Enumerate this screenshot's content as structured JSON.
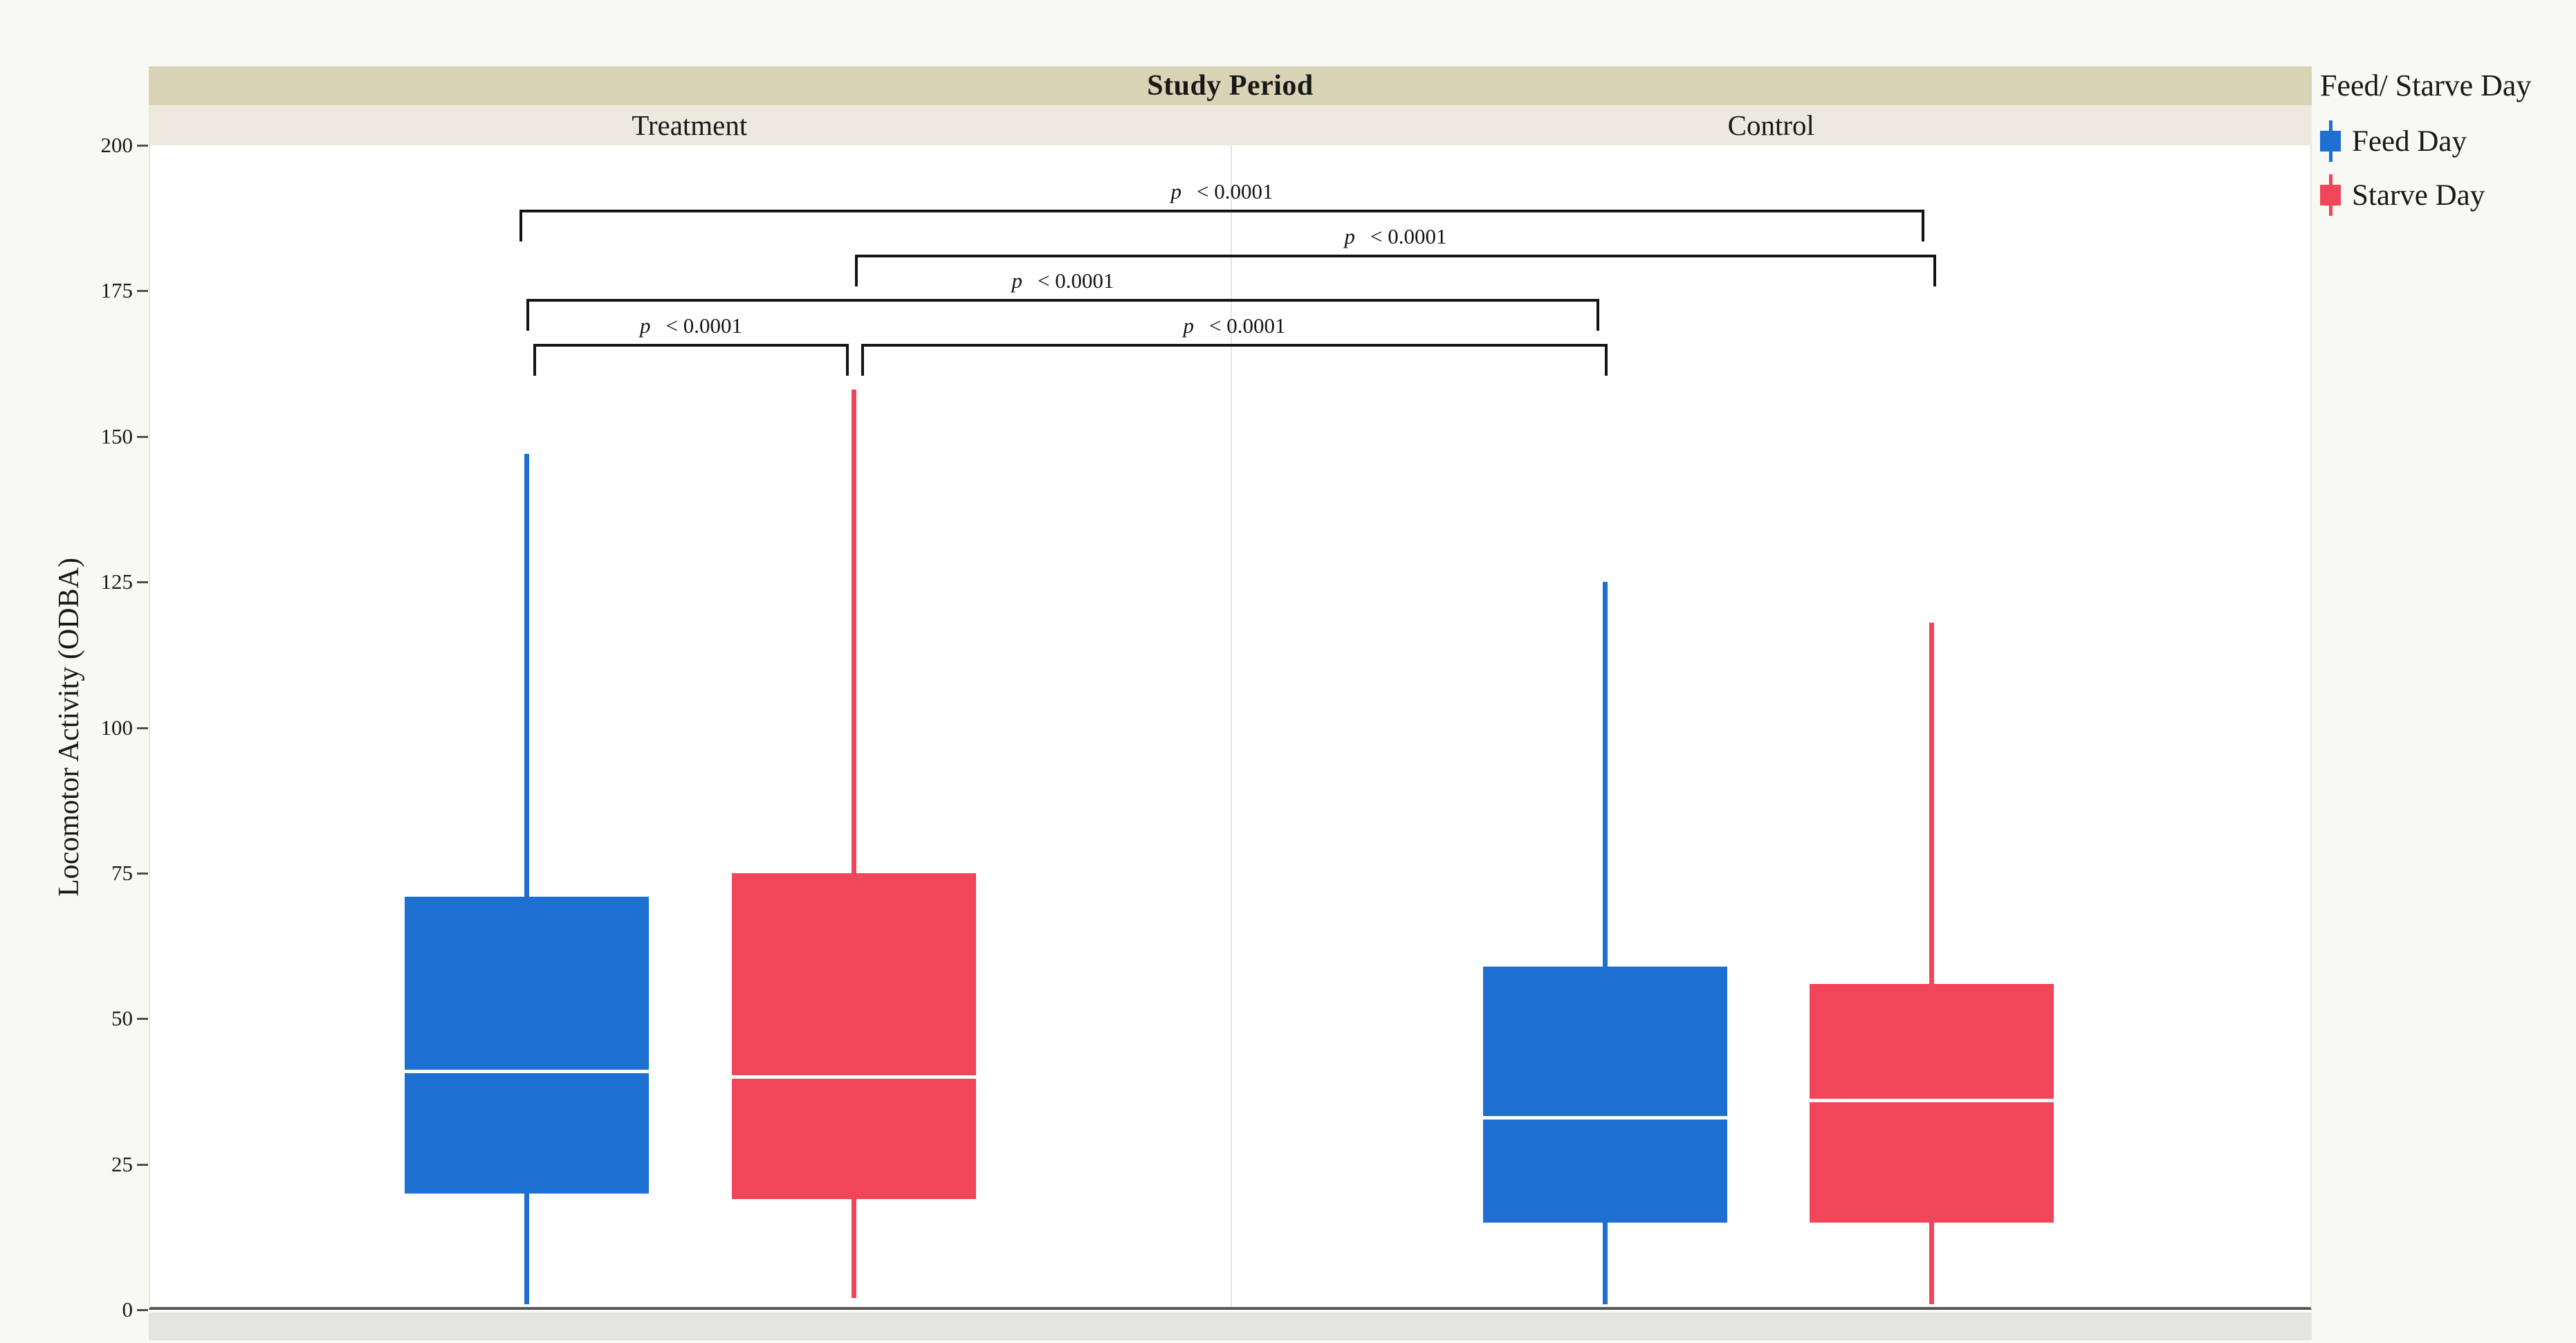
{
  "colors": {
    "background": "#f8f8f5",
    "band_title": "#d9d4b6",
    "band_panels": "#eceade",
    "axis_strip": "#e4e4e0",
    "feed_day": "#1d6fd2",
    "starve_day": "#f1455a"
  },
  "chart_data": {
    "type": "boxplot",
    "title": "Study Period",
    "ylabel": "Locomotor Activity (ODBA)",
    "ylim": [
      0,
      200
    ],
    "yticks": [
      0,
      25,
      50,
      75,
      100,
      125,
      150,
      175,
      200
    ],
    "panels": [
      "Treatment",
      "Control"
    ],
    "groups": [
      "Feed Day",
      "Starve Day"
    ],
    "grid": false,
    "legend_position": "right",
    "legend": {
      "title": "Feed/ Starve Day",
      "items": [
        {
          "label": "Feed Day",
          "color": "#1d6fd2"
        },
        {
          "label": "Starve Day",
          "color": "#f1455a"
        }
      ]
    },
    "series": [
      {
        "panel": "Treatment",
        "group": "Feed Day",
        "color": "#1d6fd2",
        "whisker_low": 1,
        "q1": 20,
        "median": 41,
        "q3": 71,
        "whisker_high": 147
      },
      {
        "panel": "Treatment",
        "group": "Starve Day",
        "color": "#f1455a",
        "whisker_low": 2,
        "q1": 19,
        "median": 40,
        "q3": 75,
        "whisker_high": 158
      },
      {
        "panel": "Control",
        "group": "Feed Day",
        "color": "#1d6fd2",
        "whisker_low": 1,
        "q1": 15,
        "median": 33,
        "q3": 59,
        "whisker_high": 125
      },
      {
        "panel": "Control",
        "group": "Starve Day",
        "color": "#f1455a",
        "whisker_low": 1,
        "q1": 15,
        "median": 36,
        "q3": 56,
        "whisker_high": 118
      }
    ],
    "comparisons": [
      {
        "between": [
          "Treatment Feed Day",
          "Control Starve Day"
        ],
        "label_p": "p",
        "label_value": "< 0.0001"
      },
      {
        "between": [
          "Treatment Starve Day",
          "Control Starve Day"
        ],
        "label_p": "p",
        "label_value": "< 0.0001"
      },
      {
        "between": [
          "Treatment Feed Day",
          "Control Feed Day"
        ],
        "label_p": "p",
        "label_value": "< 0.0001"
      },
      {
        "between": [
          "Treatment Feed Day",
          "Treatment Starve Day"
        ],
        "label_p": "p",
        "label_value": "< 0.0001"
      },
      {
        "between": [
          "Treatment Starve Day",
          "Control Feed Day"
        ],
        "label_p": "p",
        "label_value": "< 0.0001"
      }
    ]
  }
}
